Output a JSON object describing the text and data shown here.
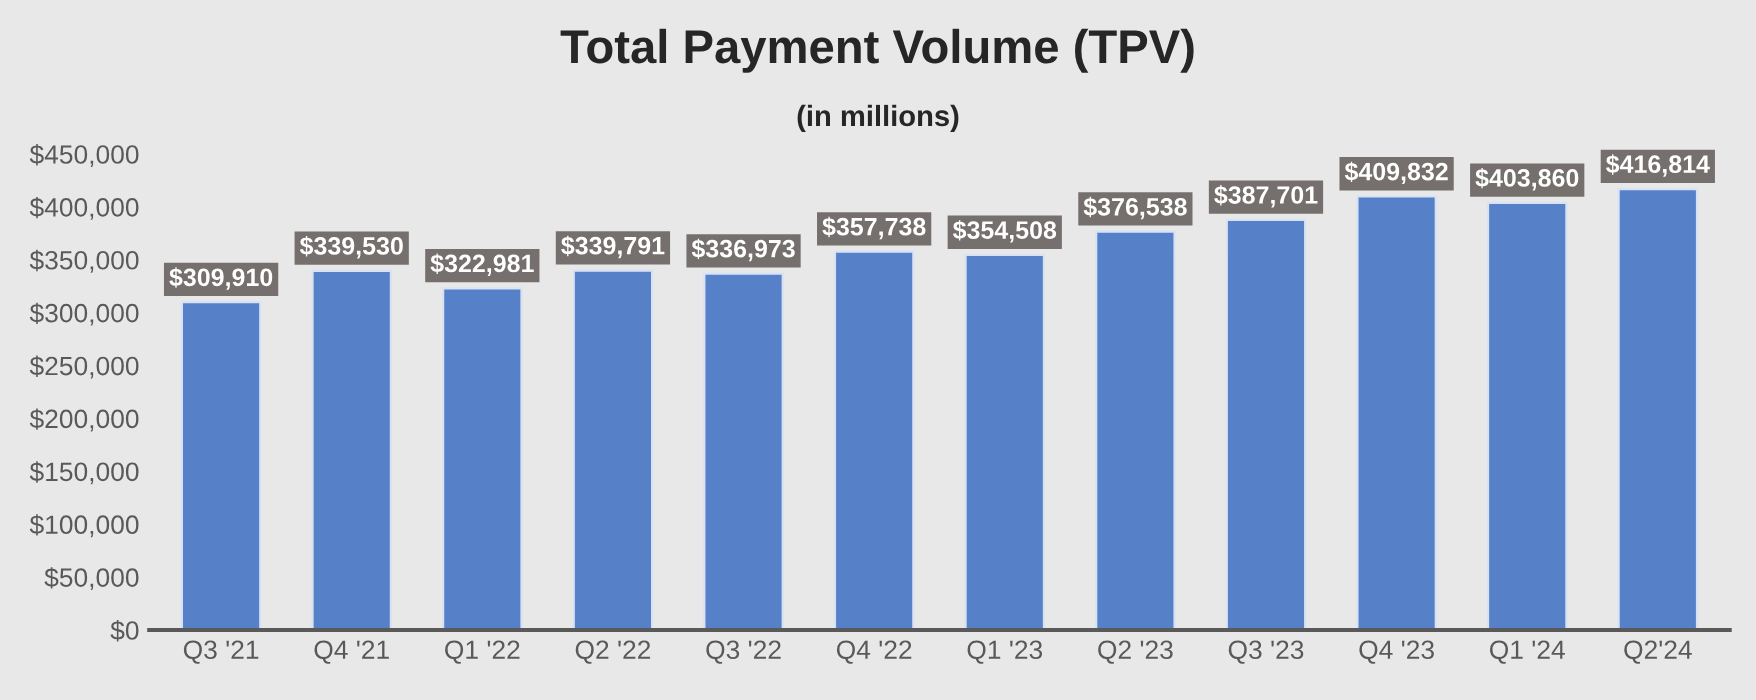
{
  "chart_data": {
    "type": "bar",
    "title": "Total Payment Volume (TPV)",
    "subtitle": "(in millions)",
    "categories": [
      "Q3 '21",
      "Q4 '21",
      "Q1 '22",
      "Q2 '22",
      "Q3 '22",
      "Q4 '22",
      "Q1 '23",
      "Q2 '23",
      "Q3 '23",
      "Q4 '23",
      "Q1 '24",
      "Q2'24"
    ],
    "values": [
      309910,
      339530,
      322981,
      339791,
      336973,
      357738,
      354508,
      376538,
      387701,
      409832,
      403860,
      416814
    ],
    "value_labels": [
      "$309,910",
      "$339,530",
      "$322,981",
      "$339,791",
      "$336,973",
      "$357,738",
      "$354,508",
      "$376,538",
      "$387,701",
      "$409,832",
      "$403,860",
      "$416,814"
    ],
    "color": "#5680c8",
    "ylim": [
      0,
      450000
    ],
    "yticks": [
      {
        "value": 0,
        "label": "$0"
      },
      {
        "value": 50000,
        "label": "$50,000"
      },
      {
        "value": 100000,
        "label": "$100,000"
      },
      {
        "value": 150000,
        "label": "$150,000"
      },
      {
        "value": 200000,
        "label": "$200,000"
      },
      {
        "value": 250000,
        "label": "$250,000"
      },
      {
        "value": 300000,
        "label": "$300,000"
      },
      {
        "value": 350000,
        "label": "$350,000"
      },
      {
        "value": 400000,
        "label": "$400,000"
      },
      {
        "value": 450000,
        "label": "$450,000"
      }
    ],
    "grid": false
  }
}
